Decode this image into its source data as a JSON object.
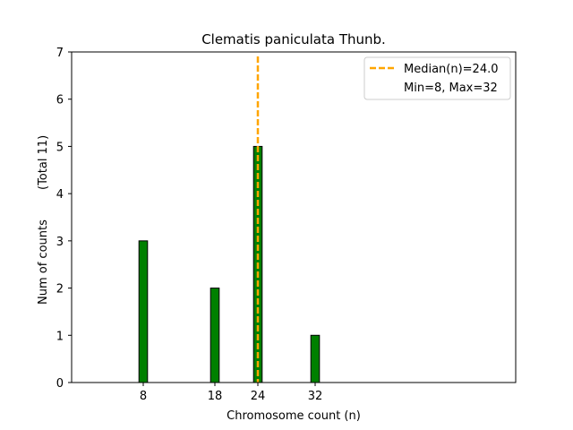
{
  "chart_data": {
    "type": "bar",
    "title": "Clematis paniculata Thunb.",
    "xlabel": "Chromosome count (n)",
    "ylabel": "Num of counts",
    "ylabel_total": "(Total 11)",
    "x": [
      8,
      18,
      24,
      32
    ],
    "values": [
      3,
      2,
      5,
      1
    ],
    "xticks": [
      8,
      18,
      24,
      32
    ],
    "yticks": [
      0,
      1,
      2,
      3,
      4,
      5,
      6,
      7
    ],
    "xlim": [
      -2,
      60
    ],
    "ylim": [
      0,
      7
    ],
    "bar_width": 1.2,
    "bar_color": "#008000",
    "bar_edge_color": "#000000",
    "median": 24.0,
    "median_color": "#FFA500",
    "legend": {
      "position": "top-right",
      "entries": [
        "Median(n)=24.0",
        "Min=8, Max=32"
      ]
    }
  }
}
